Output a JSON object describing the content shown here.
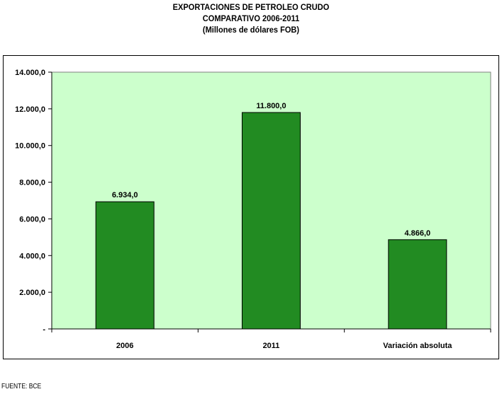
{
  "title_lines": [
    "EXPORTACIONES DE PETROLEO CRUDO",
    "COMPARATIVO 2006-2011",
    "(Millones de dólares FOB)"
  ],
  "source": "FUENTE: BCE",
  "colors": {
    "plot_background": "#ccffcc",
    "bar_fill": "#228b22",
    "bar_stroke": "#000000"
  },
  "chart_data": {
    "type": "bar",
    "title": "EXPORTACIONES DE PETROLEO CRUDO COMPARATIVO 2006-2011 (Millones de dólares FOB)",
    "categories": [
      "2006",
      "2011",
      "Variación absoluta"
    ],
    "values": [
      6934.0,
      11800.0,
      4866.0
    ],
    "value_labels": [
      "6.934,0",
      "11.800,0",
      "4.866,0"
    ],
    "ylim": [
      0,
      14000
    ],
    "y_ticks": [
      0,
      2000,
      4000,
      6000,
      8000,
      10000,
      12000,
      14000
    ],
    "y_tick_labels": [
      "-",
      "2.000,0",
      "4.000,0",
      "6.000,0",
      "8.000,0",
      "10.000,0",
      "12.000,0",
      "14.000,0"
    ],
    "xlabel": "",
    "ylabel": "",
    "grid": false,
    "legend": "none"
  }
}
